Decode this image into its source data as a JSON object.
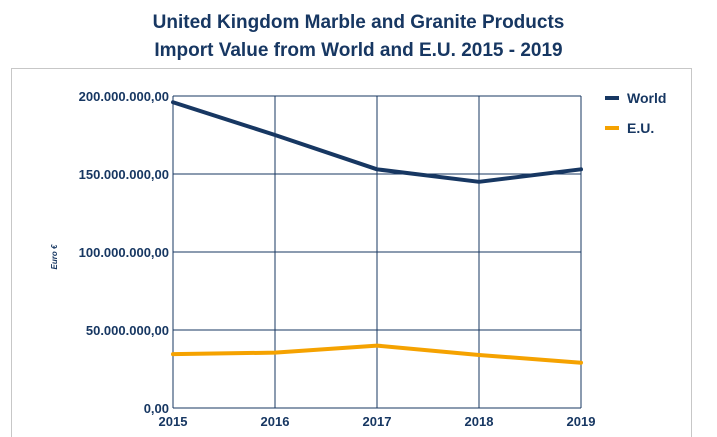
{
  "chart_data": {
    "type": "line",
    "title_line1": "United Kingdom Marble and Granite Products",
    "title_line2": "Import Value from World and E.U. 2015 - 2019",
    "ylabel": "Euro €",
    "xlabel": "",
    "categories": [
      "2015",
      "2016",
      "2017",
      "2018",
      "2019"
    ],
    "ylim": [
      0,
      200000000
    ],
    "yticks": [
      0,
      50000000,
      100000000,
      150000000,
      200000000
    ],
    "ytick_labels": [
      "0,00",
      "50.000.000,00",
      "100.000.000,00",
      "150.000.000,00",
      "200.000.000,00"
    ],
    "grid": true,
    "legend_position": "right",
    "series": [
      {
        "name": "World",
        "color": "#173762",
        "values": [
          196000000,
          175000000,
          153000000,
          145000000,
          153000000
        ]
      },
      {
        "name": "E.U.",
        "color": "#f5a200",
        "values": [
          34500000,
          35500000,
          40000000,
          34000000,
          29000000
        ]
      }
    ]
  }
}
